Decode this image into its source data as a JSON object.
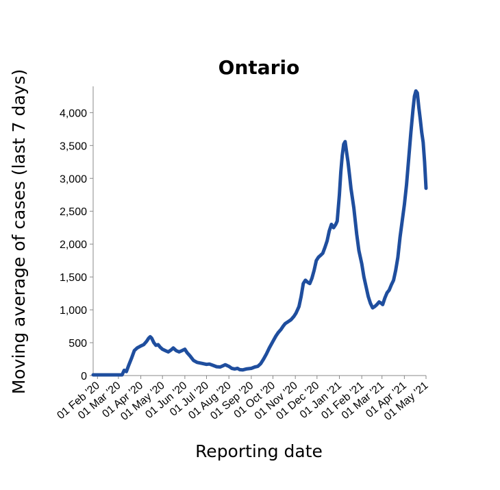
{
  "chart_data": {
    "type": "line",
    "title": "Ontario",
    "xlabel": "Reporting date",
    "ylabel": "Moving average of cases (last 7 days)",
    "x_ticks": [
      "01 Feb '20",
      "01 Mar '20",
      "01 Apr '20",
      "01 May '20",
      "01 Jun '20",
      "01 Jul '20",
      "01 Aug '20",
      "01 Sep '20",
      "01 Oct '20",
      "01 Nov '20",
      "01 Dec '20",
      "01 Jan '21",
      "01 Feb '21",
      "01 Mar '21",
      "01 Apr '21",
      "01 May '21"
    ],
    "y_ticks": [
      "0",
      "500",
      "1,000",
      "1,500",
      "2,000",
      "2,500",
      "3,000",
      "3,500",
      "4,000"
    ],
    "ylim": [
      0,
      4400
    ],
    "xlim": [
      "2020-01-26",
      "2021-05-01"
    ],
    "grid": false,
    "legend": "none",
    "series": [
      {
        "color": "#1f4e9e",
        "points": [
          [
            "2020-01-26",
            10
          ],
          [
            "2020-02-10",
            10
          ],
          [
            "2020-02-20",
            10
          ],
          [
            "2020-03-06",
            10
          ],
          [
            "2020-03-09",
            80
          ],
          [
            "2020-03-12",
            60
          ],
          [
            "2020-03-15",
            150
          ],
          [
            "2020-03-19",
            260
          ],
          [
            "2020-03-23",
            380
          ],
          [
            "2020-03-27",
            420
          ],
          [
            "2020-04-01",
            450
          ],
          [
            "2020-04-05",
            470
          ],
          [
            "2020-04-09",
            520
          ],
          [
            "2020-04-12",
            570
          ],
          [
            "2020-04-14",
            590
          ],
          [
            "2020-04-16",
            570
          ],
          [
            "2020-04-19",
            500
          ],
          [
            "2020-04-22",
            460
          ],
          [
            "2020-04-25",
            470
          ],
          [
            "2020-04-28",
            430
          ],
          [
            "2020-05-01",
            400
          ],
          [
            "2020-05-05",
            380
          ],
          [
            "2020-05-09",
            360
          ],
          [
            "2020-05-13",
            390
          ],
          [
            "2020-05-16",
            420
          ],
          [
            "2020-05-20",
            380
          ],
          [
            "2020-05-24",
            360
          ],
          [
            "2020-05-28",
            380
          ],
          [
            "2020-06-01",
            400
          ],
          [
            "2020-06-04",
            350
          ],
          [
            "2020-06-08",
            300
          ],
          [
            "2020-06-13",
            230
          ],
          [
            "2020-06-18",
            200
          ],
          [
            "2020-06-25",
            185
          ],
          [
            "2020-07-01",
            170
          ],
          [
            "2020-07-05",
            175
          ],
          [
            "2020-07-10",
            155
          ],
          [
            "2020-07-15",
            135
          ],
          [
            "2020-07-20",
            130
          ],
          [
            "2020-07-24",
            150
          ],
          [
            "2020-07-27",
            165
          ],
          [
            "2020-08-01",
            140
          ],
          [
            "2020-08-05",
            110
          ],
          [
            "2020-08-09",
            100
          ],
          [
            "2020-08-13",
            110
          ],
          [
            "2020-08-16",
            90
          ],
          [
            "2020-08-20",
            85
          ],
          [
            "2020-08-25",
            100
          ],
          [
            "2020-09-01",
            110
          ],
          [
            "2020-09-06",
            130
          ],
          [
            "2020-09-10",
            140
          ],
          [
            "2020-09-14",
            180
          ],
          [
            "2020-09-18",
            250
          ],
          [
            "2020-09-22",
            330
          ],
          [
            "2020-09-26",
            420
          ],
          [
            "2020-10-01",
            520
          ],
          [
            "2020-10-05",
            600
          ],
          [
            "2020-10-08",
            650
          ],
          [
            "2020-10-12",
            700
          ],
          [
            "2020-10-15",
            750
          ],
          [
            "2020-10-18",
            790
          ],
          [
            "2020-10-22",
            820
          ],
          [
            "2020-10-26",
            850
          ],
          [
            "2020-10-30",
            900
          ],
          [
            "2020-11-02",
            950
          ],
          [
            "2020-11-06",
            1050
          ],
          [
            "2020-11-09",
            1200
          ],
          [
            "2020-11-12",
            1400
          ],
          [
            "2020-11-15",
            1450
          ],
          [
            "2020-11-18",
            1420
          ],
          [
            "2020-11-21",
            1400
          ],
          [
            "2020-11-24",
            1480
          ],
          [
            "2020-11-27",
            1600
          ],
          [
            "2020-11-30",
            1750
          ],
          [
            "2020-12-03",
            1800
          ],
          [
            "2020-12-06",
            1830
          ],
          [
            "2020-12-09",
            1860
          ],
          [
            "2020-12-12",
            1950
          ],
          [
            "2020-12-15",
            2050
          ],
          [
            "2020-12-18",
            2200
          ],
          [
            "2020-12-21",
            2300
          ],
          [
            "2020-12-24",
            2250
          ],
          [
            "2020-12-27",
            2300
          ],
          [
            "2020-12-29",
            2350
          ],
          [
            "2021-01-01",
            2750
          ],
          [
            "2021-01-03",
            3100
          ],
          [
            "2021-01-05",
            3350
          ],
          [
            "2021-01-07",
            3520
          ],
          [
            "2021-01-09",
            3560
          ],
          [
            "2021-01-11",
            3400
          ],
          [
            "2021-01-13",
            3250
          ],
          [
            "2021-01-15",
            3050
          ],
          [
            "2021-01-17",
            2850
          ],
          [
            "2021-01-19",
            2700
          ],
          [
            "2021-01-21",
            2550
          ],
          [
            "2021-01-23",
            2350
          ],
          [
            "2021-01-25",
            2150
          ],
          [
            "2021-01-28",
            1900
          ],
          [
            "2021-02-01",
            1700
          ],
          [
            "2021-02-04",
            1500
          ],
          [
            "2021-02-07",
            1350
          ],
          [
            "2021-02-10",
            1200
          ],
          [
            "2021-02-13",
            1100
          ],
          [
            "2021-02-16",
            1030
          ],
          [
            "2021-02-19",
            1050
          ],
          [
            "2021-02-22",
            1080
          ],
          [
            "2021-02-25",
            1120
          ],
          [
            "2021-02-28",
            1100
          ],
          [
            "2021-03-02",
            1080
          ],
          [
            "2021-03-05",
            1180
          ],
          [
            "2021-03-08",
            1260
          ],
          [
            "2021-03-11",
            1300
          ],
          [
            "2021-03-14",
            1380
          ],
          [
            "2021-03-17",
            1450
          ],
          [
            "2021-03-20",
            1600
          ],
          [
            "2021-03-23",
            1800
          ],
          [
            "2021-03-26",
            2100
          ],
          [
            "2021-03-29",
            2350
          ],
          [
            "2021-04-01",
            2600
          ],
          [
            "2021-04-04",
            2900
          ],
          [
            "2021-04-07",
            3300
          ],
          [
            "2021-04-10",
            3700
          ],
          [
            "2021-04-13",
            4050
          ],
          [
            "2021-04-15",
            4250
          ],
          [
            "2021-04-17",
            4330
          ],
          [
            "2021-04-19",
            4300
          ],
          [
            "2021-04-21",
            4080
          ],
          [
            "2021-04-23",
            3900
          ],
          [
            "2021-04-25",
            3700
          ],
          [
            "2021-04-27",
            3550
          ],
          [
            "2021-04-29",
            3250
          ],
          [
            "2021-05-01",
            2850
          ]
        ]
      }
    ]
  }
}
